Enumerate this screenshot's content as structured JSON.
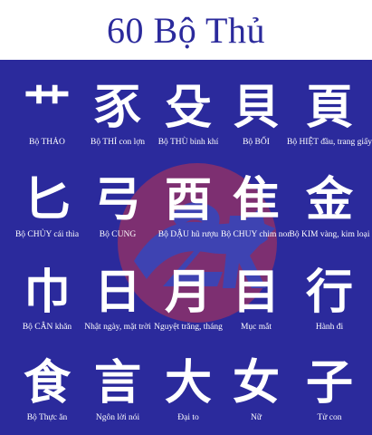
{
  "header": {
    "title": "60 Bộ Thủ"
  },
  "rows": [
    [
      {
        "char": "艹",
        "label": "Bộ THẢO"
      },
      {
        "char": "豕",
        "label": "Bộ THỈ con lợn"
      },
      {
        "char": "殳",
        "label": "Bộ THÙ binh khí"
      },
      {
        "char": "貝",
        "label": "Bộ BỐI"
      },
      {
        "char": "頁",
        "label": "Bộ HIỆT đầu, trang giấy"
      }
    ],
    [
      {
        "char": "匕",
        "label": "Bộ CHỦY cái thìa"
      },
      {
        "char": "弓",
        "label": "Bộ CUNG"
      },
      {
        "char": "酉",
        "label": "Bộ DẬU hũ rượu"
      },
      {
        "char": "隹",
        "label": "Bộ CHUY chim non"
      },
      {
        "char": "金",
        "label": "Bộ KIM vàng, kim loại"
      }
    ],
    [
      {
        "char": "巾",
        "label": "Bộ CÂN khăn"
      },
      {
        "char": "日",
        "label": "Nhật ngày, mặt trời"
      },
      {
        "char": "月",
        "label": "Nguyệt trăng, tháng"
      },
      {
        "char": "目",
        "label": "Mục mắt"
      },
      {
        "char": "行",
        "label": "Hành đi"
      }
    ],
    [
      {
        "char": "食",
        "label": "Bộ Thực ăn"
      },
      {
        "char": "言",
        "label": "Ngôn lời nói"
      },
      {
        "char": "大",
        "label": "Đại to"
      },
      {
        "char": "女",
        "label": "Nữ"
      },
      {
        "char": "子",
        "label": "Tử con"
      }
    ]
  ],
  "watermark": {
    "icon": "logo-2k-watermark",
    "colors": [
      "#c0344e",
      "#4e59c4"
    ]
  },
  "colors": {
    "background": "#2b2a9c",
    "header_bg": "#ffffff",
    "title": "#2b2a9c",
    "text": "#ffffff"
  }
}
